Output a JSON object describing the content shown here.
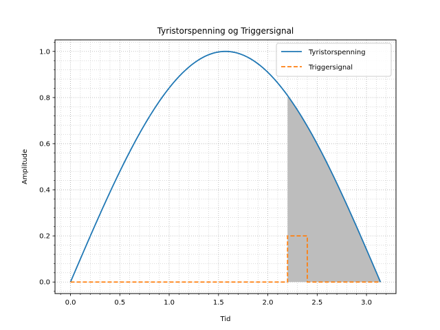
{
  "chart_data": {
    "type": "line",
    "title": "Tyristorspenning og Triggersignal",
    "xlabel": "Tid",
    "ylabel": "Amplitude",
    "xlim": [
      -0.157,
      3.299
    ],
    "ylim": [
      -0.05,
      1.05
    ],
    "xticks": [
      0.0,
      0.5,
      1.0,
      1.5,
      2.0,
      2.5,
      3.0
    ],
    "xtick_labels": [
      "0.0",
      "0.5",
      "1.0",
      "1.5",
      "2.0",
      "2.5",
      "3.0"
    ],
    "yticks": [
      0.0,
      0.2,
      0.4,
      0.6,
      0.8,
      1.0
    ],
    "ytick_labels": [
      "0.0",
      "0.2",
      "0.4",
      "0.6",
      "0.8",
      "1.0"
    ],
    "grid": "on (major and minor, dotted)",
    "legend_position": "top-right",
    "series": [
      {
        "name": "Tyristorspenning",
        "color": "#1f77b4",
        "style": "solid",
        "x": [
          0.0,
          0.157,
          0.314,
          0.471,
          0.628,
          0.785,
          0.942,
          1.1,
          1.257,
          1.414,
          1.571,
          1.728,
          1.885,
          2.042,
          2.2,
          2.356,
          2.513,
          2.67,
          2.827,
          2.985,
          3.142
        ],
        "y": [
          0.0,
          0.156,
          0.309,
          0.454,
          0.588,
          0.707,
          0.809,
          0.891,
          0.951,
          0.988,
          1.0,
          0.988,
          0.951,
          0.891,
          0.809,
          0.707,
          0.588,
          0.454,
          0.309,
          0.156,
          0.0
        ]
      },
      {
        "name": "Triggersignal",
        "color": "#ff7f0e",
        "style": "dashed",
        "x": [
          0.0,
          2.2,
          2.2,
          2.4,
          2.4,
          3.142
        ],
        "y": [
          0.0,
          0.0,
          0.2,
          0.2,
          0.0,
          0.0
        ]
      }
    ],
    "shaded_region": {
      "x_from": 2.2,
      "x_to": 3.142,
      "under": "Tyristorspenning",
      "color": "#bdbdbd"
    }
  }
}
